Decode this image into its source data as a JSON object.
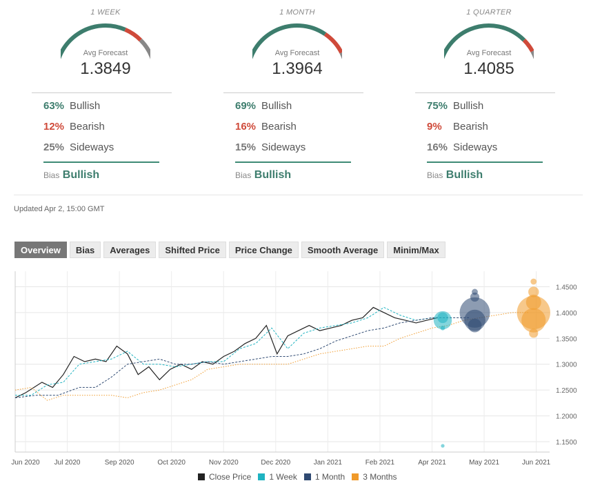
{
  "colors": {
    "bull": "#3d7d6d",
    "bear": "#cf4a3a",
    "side": "#888888",
    "close": "#222222",
    "week": "#1fb3c1",
    "month": "#2f4a72",
    "quarter": "#f09a2a"
  },
  "forecasts": [
    {
      "period": "1 WEEK",
      "avg_label": "Avg Forecast",
      "value": "1.3849",
      "bullish_pct": "63%",
      "bullish_label": "Bullish",
      "bearish_pct": "12%",
      "bearish_label": "Bearish",
      "sideways_pct": "25%",
      "sideways_label": "Sideways",
      "bias_label": "Bias",
      "bias_value": "Bullish",
      "gauge": {
        "bull": 0.63,
        "bear": 0.12,
        "side": 0.25
      }
    },
    {
      "period": "1 MONTH",
      "avg_label": "Avg Forecast",
      "value": "1.3964",
      "bullish_pct": "69%",
      "bullish_label": "Bullish",
      "bearish_pct": "16%",
      "bearish_label": "Bearish",
      "sideways_pct": "15%",
      "sideways_label": "Sideways",
      "bias_label": "Bias",
      "bias_value": "Bullish",
      "gauge": {
        "bull": 0.69,
        "bear": 0.16,
        "side": 0.15
      }
    },
    {
      "period": "1 QUARTER",
      "avg_label": "Avg Forecast",
      "value": "1.4085",
      "bullish_pct": "75%",
      "bullish_label": "Bullish",
      "bearish_pct": "9%",
      "bearish_label": "Bearish",
      "sideways_pct": "16%",
      "sideways_label": "Sideways",
      "bias_label": "Bias",
      "bias_value": "Bullish",
      "gauge": {
        "bull": 0.75,
        "bear": 0.09,
        "side": 0.16
      }
    }
  ],
  "updated": "Updated Apr 2, 15:00 GMT",
  "tabs": [
    "Overview",
    "Bias",
    "Averages",
    "Shifted Price",
    "Price Change",
    "Smooth Average",
    "Minim/Max"
  ],
  "active_tab": "Overview",
  "chart_data": {
    "type": "line",
    "x_ticks": [
      "Jun 2020",
      "Jul 2020",
      "Sep 2020",
      "Oct 2020",
      "Nov 2020",
      "Dec 2020",
      "Jan 2021",
      "Feb 2021",
      "Apr 2021",
      "May 2021",
      "Jun 2021"
    ],
    "y_ticks": [
      "1.4500",
      "1.4000",
      "1.3500",
      "1.3000",
      "1.2500",
      "1.2000",
      "1.1500"
    ],
    "ylim": [
      1.13,
      1.48
    ],
    "xlim": [
      0,
      100
    ],
    "series": [
      {
        "name": "Close Price",
        "style": "solid",
        "points": [
          [
            0,
            1.235
          ],
          [
            2,
            1.245
          ],
          [
            5,
            1.265
          ],
          [
            7,
            1.255
          ],
          [
            9,
            1.28
          ],
          [
            11,
            1.315
          ],
          [
            13,
            1.305
          ],
          [
            15,
            1.31
          ],
          [
            17,
            1.305
          ],
          [
            19,
            1.335
          ],
          [
            21,
            1.32
          ],
          [
            23,
            1.28
          ],
          [
            25,
            1.295
          ],
          [
            27,
            1.27
          ],
          [
            29,
            1.29
          ],
          [
            31,
            1.3
          ],
          [
            33,
            1.29
          ],
          [
            35,
            1.305
          ],
          [
            37,
            1.3
          ],
          [
            39,
            1.315
          ],
          [
            41,
            1.325
          ],
          [
            43,
            1.34
          ],
          [
            45,
            1.35
          ],
          [
            47,
            1.375
          ],
          [
            49,
            1.32
          ],
          [
            51,
            1.355
          ],
          [
            53,
            1.365
          ],
          [
            55,
            1.375
          ],
          [
            57,
            1.365
          ],
          [
            59,
            1.37
          ],
          [
            61,
            1.375
          ],
          [
            63,
            1.385
          ],
          [
            65,
            1.39
          ],
          [
            67,
            1.41
          ],
          [
            69,
            1.4
          ],
          [
            71,
            1.39
          ],
          [
            73,
            1.385
          ],
          [
            75,
            1.38
          ],
          [
            77,
            1.385
          ],
          [
            79,
            1.39
          ]
        ]
      },
      {
        "name": "1 Week",
        "style": "dashed",
        "points": [
          [
            0,
            1.24
          ],
          [
            3,
            1.24
          ],
          [
            6,
            1.26
          ],
          [
            9,
            1.265
          ],
          [
            12,
            1.3
          ],
          [
            15,
            1.305
          ],
          [
            18,
            1.31
          ],
          [
            21,
            1.325
          ],
          [
            24,
            1.3
          ],
          [
            27,
            1.3
          ],
          [
            30,
            1.295
          ],
          [
            33,
            1.3
          ],
          [
            36,
            1.305
          ],
          [
            39,
            1.305
          ],
          [
            42,
            1.33
          ],
          [
            45,
            1.34
          ],
          [
            48,
            1.37
          ],
          [
            51,
            1.33
          ],
          [
            54,
            1.36
          ],
          [
            57,
            1.37
          ],
          [
            60,
            1.375
          ],
          [
            63,
            1.38
          ],
          [
            66,
            1.39
          ],
          [
            69,
            1.41
          ],
          [
            72,
            1.395
          ],
          [
            75,
            1.385
          ],
          [
            78,
            1.39
          ],
          [
            79,
            1.39
          ]
        ]
      },
      {
        "name": "1 Month",
        "style": "dashed",
        "points": [
          [
            0,
            1.235
          ],
          [
            4,
            1.24
          ],
          [
            8,
            1.24
          ],
          [
            12,
            1.255
          ],
          [
            15,
            1.255
          ],
          [
            18,
            1.275
          ],
          [
            21,
            1.3
          ],
          [
            24,
            1.305
          ],
          [
            27,
            1.31
          ],
          [
            30,
            1.3
          ],
          [
            33,
            1.3
          ],
          [
            36,
            1.305
          ],
          [
            39,
            1.3
          ],
          [
            42,
            1.305
          ],
          [
            45,
            1.31
          ],
          [
            48,
            1.315
          ],
          [
            51,
            1.315
          ],
          [
            54,
            1.32
          ],
          [
            57,
            1.33
          ],
          [
            60,
            1.345
          ],
          [
            63,
            1.355
          ],
          [
            66,
            1.365
          ],
          [
            69,
            1.37
          ],
          [
            72,
            1.38
          ],
          [
            75,
            1.385
          ],
          [
            78,
            1.39
          ],
          [
            81,
            1.39
          ],
          [
            85,
            1.39
          ]
        ]
      },
      {
        "name": "3 Months",
        "style": "dotted",
        "points": [
          [
            0,
            1.25
          ],
          [
            3,
            1.255
          ],
          [
            6,
            1.23
          ],
          [
            9,
            1.24
          ],
          [
            12,
            1.24
          ],
          [
            15,
            1.24
          ],
          [
            18,
            1.24
          ],
          [
            21,
            1.235
          ],
          [
            24,
            1.245
          ],
          [
            27,
            1.25
          ],
          [
            30,
            1.26
          ],
          [
            33,
            1.27
          ],
          [
            36,
            1.29
          ],
          [
            39,
            1.295
          ],
          [
            42,
            1.3
          ],
          [
            45,
            1.3
          ],
          [
            48,
            1.3
          ],
          [
            51,
            1.3
          ],
          [
            54,
            1.31
          ],
          [
            57,
            1.32
          ],
          [
            60,
            1.325
          ],
          [
            63,
            1.33
          ],
          [
            66,
            1.335
          ],
          [
            69,
            1.335
          ],
          [
            72,
            1.35
          ],
          [
            75,
            1.36
          ],
          [
            78,
            1.37
          ],
          [
            81,
            1.375
          ],
          [
            84,
            1.385
          ],
          [
            87,
            1.39
          ],
          [
            90,
            1.395
          ],
          [
            93,
            1.4
          ],
          [
            96,
            1.4
          ]
        ]
      }
    ],
    "bubbles": [
      {
        "series": "1 Week",
        "x": 80,
        "y": 1.385,
        "r": 0.6
      },
      {
        "series": "1 Week",
        "x": 80,
        "y": 1.39,
        "r": 0.35
      },
      {
        "series": "1 Week",
        "x": 80,
        "y": 1.37,
        "r": 0.15
      },
      {
        "series": "1 Week",
        "x": 80,
        "y": 1.142,
        "r": 0.12
      },
      {
        "series": "1 Month",
        "x": 86,
        "y": 1.4,
        "r": 1.0
      },
      {
        "series": "1 Month",
        "x": 86,
        "y": 1.385,
        "r": 0.7
      },
      {
        "series": "1 Month",
        "x": 86,
        "y": 1.375,
        "r": 0.45
      },
      {
        "series": "1 Month",
        "x": 86,
        "y": 1.43,
        "r": 0.3
      },
      {
        "series": "1 Month",
        "x": 86,
        "y": 1.44,
        "r": 0.2
      },
      {
        "series": "3 Months",
        "x": 97,
        "y": 1.4,
        "r": 1.1
      },
      {
        "series": "3 Months",
        "x": 97,
        "y": 1.385,
        "r": 0.8
      },
      {
        "series": "3 Months",
        "x": 97,
        "y": 1.42,
        "r": 0.5
      },
      {
        "series": "3 Months",
        "x": 97,
        "y": 1.44,
        "r": 0.35
      },
      {
        "series": "3 Months",
        "x": 97,
        "y": 1.36,
        "r": 0.3
      },
      {
        "series": "3 Months",
        "x": 97,
        "y": 1.46,
        "r": 0.2
      }
    ]
  },
  "legend": [
    {
      "label": "Close Price",
      "color": "#222222"
    },
    {
      "label": "1 Week",
      "color": "#1fb3c1"
    },
    {
      "label": "1 Month",
      "color": "#2f4a72"
    },
    {
      "label": "3 Months",
      "color": "#f09a2a"
    }
  ]
}
